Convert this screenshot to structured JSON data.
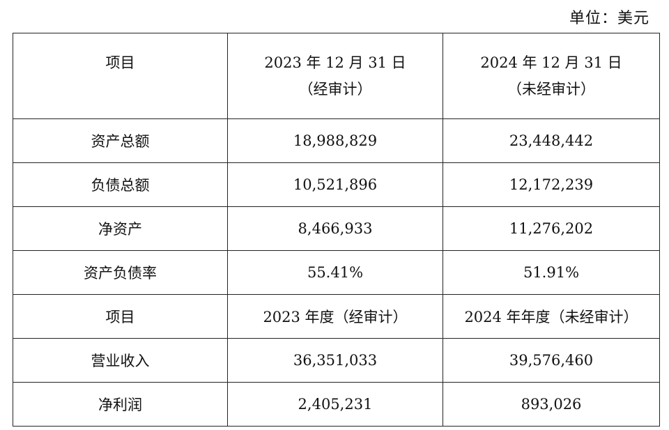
{
  "unit_label": "单位：美元",
  "balance_header": {
    "item": "项目",
    "col1_line1": "2023 年 12 月 31 日",
    "col1_line2": "（经审计）",
    "col2_line1": "2024 年 12 月 31 日",
    "col2_line2": "（未经审计）"
  },
  "balance_rows": [
    {
      "label": "资产总额",
      "v2023": "18,988,829",
      "v2024": "23,448,442"
    },
    {
      "label": "负债总额",
      "v2023": "10,521,896",
      "v2024": "12,172,239"
    },
    {
      "label": "净资产",
      "v2023": "8,466,933",
      "v2024": "11,276,202"
    },
    {
      "label": "资产负债率",
      "v2023": "55.41%",
      "v2024": "51.91%"
    }
  ],
  "income_header": {
    "item": "项目",
    "col1": "2023 年度（经审计）",
    "col2": "2024 年年度（未经审计）"
  },
  "income_rows": [
    {
      "label": "营业收入",
      "v2023": "36,351,033",
      "v2024": "39,576,460"
    },
    {
      "label": "净利润",
      "v2023": "2,405,231",
      "v2024": "893,026"
    }
  ]
}
